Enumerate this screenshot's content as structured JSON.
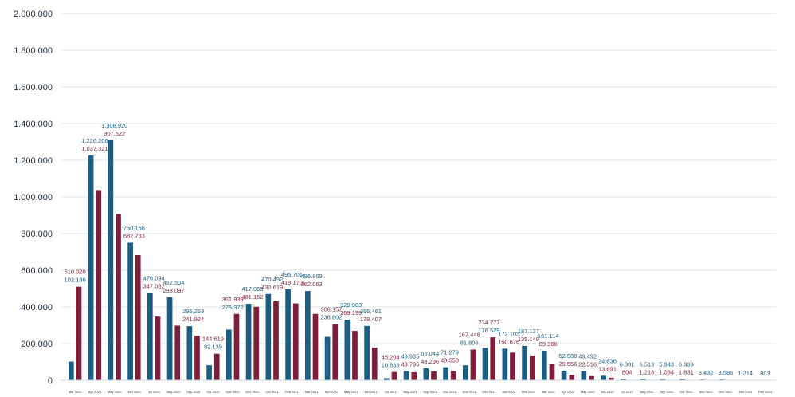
{
  "chart_data": {
    "type": "bar",
    "ylim": [
      0,
      2000000
    ],
    "yticks": [
      "0",
      "200.000",
      "400.000",
      "600.000",
      "800.000",
      "1.000.000",
      "1.200.000",
      "1.400.000",
      "1.600.000",
      "1.800.000",
      "2.000.000"
    ],
    "grid": true,
    "colors": {
      "series1": "#1b5e83",
      "series2": "#7d1f3c",
      "grid": "#dbe6ef"
    },
    "categories": [
      "Mar 2020",
      "Apr 2020",
      "May 2020",
      "Jun 2020",
      "Jul 2020",
      "Aug 2020",
      "Sep 2020",
      "Oct 2020",
      "Nov 2020",
      "Dec 2020",
      "Jan 2021",
      "Feb 2021",
      "Mar 2021",
      "Apr 2021",
      "May 2021",
      "Jun 2021",
      "Jul 2021",
      "Aug 2021",
      "Sep 2021",
      "Oct 2021",
      "Nov 2021",
      "Dec 2021",
      "Jan 2022",
      "Feb 2022",
      "Mar 2022",
      "Apr 2022",
      "May 2022",
      "Jun 2022",
      "Jul 2022",
      "Aug 2022",
      "Sep 2022",
      "Oct 2022",
      "Nov 2022",
      "Dec 2022",
      "Jan 2023",
      "Feb 2023"
    ],
    "series": [
      {
        "values": [
          102186,
          1226206,
          1308920,
          750156,
          476094,
          452504,
          295253,
          82139,
          276372,
          417068,
          470492,
          495701,
          486869,
          236602,
          329983,
          296461,
          10833,
          49935,
          66044,
          71279,
          81806,
          176529,
          172103,
          187137,
          161114,
          52588,
          49492,
          24636,
          6381,
          6513,
          5943,
          6339,
          3432,
          3586,
          1214,
          803
        ],
        "labels": [
          "102.186",
          "1.226.206",
          "1.308.920",
          "750.156",
          "476.094",
          "452.504",
          "295.253",
          "82.139",
          "276.372",
          "417.068",
          "470.492",
          "495.701",
          "486.869",
          "236.602",
          "329.983",
          "296.461",
          "10.833",
          "49.935",
          "66.044",
          "71.279",
          "81.806",
          "176.529",
          "172.103",
          "187.137",
          "161.114",
          "52.588",
          "49.492",
          "24.636",
          "6.381",
          "6.513",
          "5.943",
          "6.339",
          "3.432",
          "3.586",
          "1.214",
          "803"
        ]
      },
      {
        "values": [
          510020,
          1037321,
          907522,
          682733,
          347082,
          298097,
          241924,
          144619,
          361939,
          401162,
          430619,
          419170,
          362063,
          306157,
          269199,
          178407,
          45204,
          43795,
          48296,
          48550,
          167448,
          234277,
          150676,
          135149,
          89366,
          29556,
          22516,
          13691,
          804,
          1218,
          1034,
          1831,
          null,
          null,
          null,
          null
        ],
        "labels": [
          "510.020",
          "1.037.321",
          "907.522",
          "682.733",
          "347.082",
          "298.097",
          "241.924",
          "144.619",
          "361.939",
          "401.162",
          "430.619",
          "419.170",
          "362.063",
          "306.157",
          "269.199",
          "178.407",
          "45.204",
          "43.795",
          "48.296",
          "48.550",
          "167.448",
          "234.277",
          "150.676",
          "135.149",
          "89.366",
          "29.556",
          "22.516",
          "13.691",
          "804",
          "1.218",
          "1.034",
          "1.831",
          null,
          null,
          null,
          null
        ]
      }
    ]
  }
}
